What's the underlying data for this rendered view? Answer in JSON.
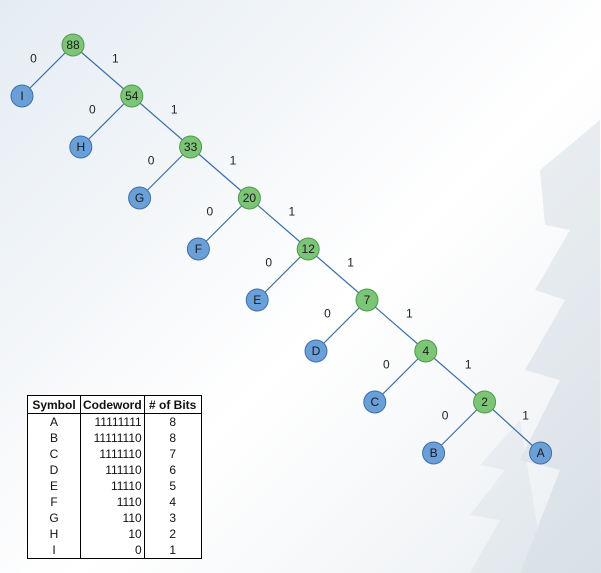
{
  "tree": {
    "nodes": [
      {
        "id": "n88",
        "label": "88",
        "kind": "internal"
      },
      {
        "id": "n54",
        "label": "54",
        "kind": "internal"
      },
      {
        "id": "n33",
        "label": "33",
        "kind": "internal"
      },
      {
        "id": "n20",
        "label": "20",
        "kind": "internal"
      },
      {
        "id": "n12",
        "label": "12",
        "kind": "internal"
      },
      {
        "id": "n7",
        "label": "7",
        "kind": "internal"
      },
      {
        "id": "n4",
        "label": "4",
        "kind": "internal"
      },
      {
        "id": "n2",
        "label": "2",
        "kind": "internal"
      },
      {
        "id": "lI",
        "label": "I",
        "kind": "leaf"
      },
      {
        "id": "lH",
        "label": "H",
        "kind": "leaf"
      },
      {
        "id": "lG",
        "label": "G",
        "kind": "leaf"
      },
      {
        "id": "lF",
        "label": "F",
        "kind": "leaf"
      },
      {
        "id": "lE",
        "label": "E",
        "kind": "leaf"
      },
      {
        "id": "lD",
        "label": "D",
        "kind": "leaf"
      },
      {
        "id": "lC",
        "label": "C",
        "kind": "leaf"
      },
      {
        "id": "lB",
        "label": "B",
        "kind": "leaf"
      },
      {
        "id": "lA",
        "label": "A",
        "kind": "leaf"
      }
    ],
    "edges": [
      {
        "from": "n88",
        "to": "lI",
        "label": "0"
      },
      {
        "from": "n88",
        "to": "n54",
        "label": "1"
      },
      {
        "from": "n54",
        "to": "lH",
        "label": "0"
      },
      {
        "from": "n54",
        "to": "n33",
        "label": "1"
      },
      {
        "from": "n33",
        "to": "lG",
        "label": "0"
      },
      {
        "from": "n33",
        "to": "n20",
        "label": "1"
      },
      {
        "from": "n20",
        "to": "lF",
        "label": "0"
      },
      {
        "from": "n20",
        "to": "n12",
        "label": "1"
      },
      {
        "from": "n12",
        "to": "lE",
        "label": "0"
      },
      {
        "from": "n12",
        "to": "n7",
        "label": "1"
      },
      {
        "from": "n7",
        "to": "lD",
        "label": "0"
      },
      {
        "from": "n7",
        "to": "n4",
        "label": "1"
      },
      {
        "from": "n4",
        "to": "lC",
        "label": "0"
      },
      {
        "from": "n4",
        "to": "n2",
        "label": "1"
      },
      {
        "from": "n2",
        "to": "lB",
        "label": "0"
      },
      {
        "from": "n2",
        "to": "lA",
        "label": "1"
      }
    ],
    "colors": {
      "internal_fill": "#7cc576",
      "internal_stroke": "#4e9a4a",
      "leaf_fill": "#6a9fd8",
      "leaf_stroke": "#3f6fa8",
      "edge": "#3a6ea5"
    }
  },
  "table": {
    "headers": [
      "Symbol",
      "Codeword",
      "# of Bits"
    ],
    "rows": [
      [
        "A",
        "11111111",
        "8"
      ],
      [
        "B",
        "11111110",
        "8"
      ],
      [
        "C",
        "1111110",
        "7"
      ],
      [
        "D",
        "111110",
        "6"
      ],
      [
        "E",
        "11110",
        "5"
      ],
      [
        "F",
        "1110",
        "4"
      ],
      [
        "G",
        "110",
        "3"
      ],
      [
        "H",
        "10",
        "2"
      ],
      [
        "I",
        "0",
        "1"
      ]
    ]
  }
}
